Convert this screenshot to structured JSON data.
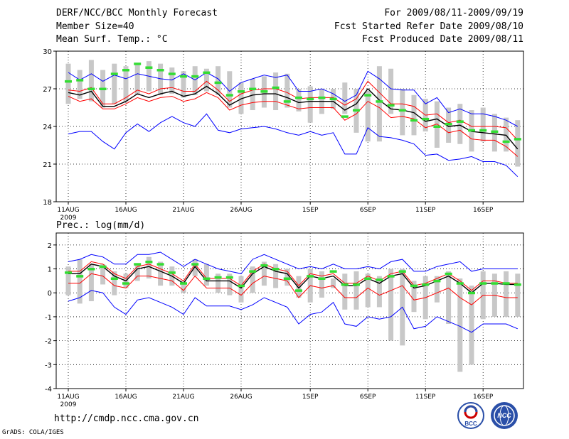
{
  "header": {
    "title": "DERF/NCC/BCC Monthly Forecast",
    "member_size": "Member Size=40",
    "variable": "Mean Surf. Temp.: °C",
    "period": "For 2009/08/11-2009/09/19",
    "started": "Fcst Started Refer Date 2009/08/10",
    "produced": "Fcst Produced Date 2009/08/11"
  },
  "footer": {
    "url": "http://cmdp.ncc.cma.gov.cn",
    "grads": "GrADS: COLA/IGES",
    "logo_left": "BCC",
    "logo_right": "NCC"
  },
  "colors": {
    "blue": "#0000ff",
    "red": "#ff0000",
    "black": "#000000",
    "green": "#33dd33",
    "box": "#c8c8c8"
  },
  "chart_data": [
    {
      "type": "line",
      "title": "Mean Surf. Temp.: °C",
      "ylim": [
        18,
        30
      ],
      "yticks": [
        18,
        21,
        24,
        27,
        30
      ],
      "xticks": [
        "11AUG",
        "16AUG",
        "21AUG",
        "26AUG",
        "1SEP",
        "6SEP",
        "11SEP",
        "16SEP"
      ],
      "xticks_day_index": [
        0,
        5,
        10,
        15,
        21,
        26,
        31,
        36
      ],
      "year_label": "2009",
      "box_low": [
        25.8,
        26.2,
        26.0,
        25.5,
        25.8,
        26.0,
        26.5,
        26.8,
        26.5,
        26.6,
        26.3,
        26.5,
        26.8,
        26.5,
        25.5,
        25.0,
        25.3,
        25.5,
        25.3,
        25.5,
        25.2,
        24.3,
        25.0,
        25.4,
        25.0,
        23.5,
        22.8,
        22.8,
        25.0,
        23.3,
        23.3,
        23.6,
        22.3,
        22.7,
        22.6,
        22.0,
        22.8,
        22.0,
        22.0,
        20.8
      ],
      "box_high": [
        29.0,
        28.5,
        29.3,
        28.5,
        29.0,
        28.8,
        29.0,
        29.2,
        29.0,
        28.7,
        28.4,
        28.8,
        28.6,
        28.8,
        28.4,
        27.5,
        27.8,
        28.0,
        28.3,
        28.2,
        27.0,
        27.2,
        27.0,
        27.0,
        27.5,
        27.0,
        26.8,
        28.8,
        28.6,
        27.0,
        26.5,
        26.2,
        26.0,
        25.5,
        25.8,
        25.3,
        25.5,
        25.0,
        24.7,
        24.5
      ],
      "green": [
        27.6,
        27.7,
        27.0,
        27.0,
        28.2,
        28.5,
        29.0,
        28.7,
        28.5,
        28.2,
        28.0,
        28.0,
        28.3,
        27.5,
        26.5,
        26.8,
        27.0,
        26.8,
        27.1,
        26.0,
        26.3,
        26.2,
        26.3,
        26.2,
        24.8,
        25.3,
        26.5,
        26.0,
        25.7,
        25.3,
        24.5,
        24.6,
        24.0,
        24.2,
        24.4,
        23.7,
        23.7,
        23.6,
        22.8,
        23.0
      ],
      "series": [
        {
          "name": "max",
          "color": "#0000ff",
          "values": [
            28.3,
            27.7,
            28.2,
            27.6,
            28.1,
            27.8,
            28.2,
            28.0,
            27.8,
            27.7,
            28.2,
            27.7,
            28.3,
            27.8,
            26.8,
            27.5,
            27.8,
            28.1,
            27.9,
            28.1,
            26.8,
            26.8,
            27.0,
            26.6,
            26.0,
            26.5,
            28.4,
            27.8,
            27.0,
            26.9,
            26.9,
            25.8,
            26.3,
            25.1,
            25.4,
            25.0,
            25.0,
            24.8,
            24.5,
            24.0
          ]
        },
        {
          "name": "upper",
          "color": "#ff0000",
          "values": [
            26.9,
            26.8,
            27.1,
            25.8,
            25.8,
            26.3,
            26.9,
            26.6,
            27.0,
            27.1,
            26.8,
            26.8,
            27.6,
            26.9,
            26.0,
            26.6,
            26.9,
            27.0,
            27.0,
            26.7,
            26.2,
            26.3,
            26.3,
            26.3,
            25.7,
            26.2,
            27.6,
            26.7,
            25.8,
            25.8,
            25.6,
            24.9,
            25.0,
            24.3,
            24.5,
            24.0,
            24.0,
            24.0,
            23.9,
            22.9
          ]
        },
        {
          "name": "mean",
          "color": "#000000",
          "values": [
            26.7,
            26.5,
            26.8,
            25.6,
            25.6,
            26.0,
            26.6,
            26.3,
            26.6,
            26.8,
            26.4,
            26.6,
            27.2,
            26.6,
            25.7,
            26.2,
            26.5,
            26.6,
            26.6,
            26.3,
            25.9,
            26.0,
            26.0,
            26.0,
            25.3,
            25.8,
            27.0,
            26.1,
            25.4,
            25.3,
            25.1,
            24.4,
            24.6,
            24.0,
            24.1,
            23.6,
            23.5,
            23.4,
            23.3,
            22.2
          ]
        },
        {
          "name": "lower",
          "color": "#ff0000",
          "values": [
            26.4,
            26.0,
            26.2,
            25.4,
            25.4,
            25.8,
            26.3,
            26.0,
            26.3,
            26.4,
            26.0,
            26.2,
            26.7,
            26.3,
            25.3,
            25.7,
            25.9,
            26.0,
            26.0,
            25.7,
            25.4,
            25.5,
            25.5,
            25.5,
            24.5,
            25.0,
            26.0,
            25.5,
            24.7,
            24.8,
            24.6,
            23.9,
            24.2,
            23.5,
            23.7,
            23.0,
            22.9,
            22.9,
            22.4,
            21.6
          ]
        },
        {
          "name": "min",
          "color": "#0000ff",
          "values": [
            23.4,
            23.6,
            23.6,
            22.8,
            22.2,
            23.5,
            24.2,
            23.6,
            24.3,
            24.8,
            24.3,
            24.0,
            25.0,
            23.7,
            23.5,
            23.8,
            23.9,
            24.0,
            23.8,
            23.5,
            23.3,
            23.6,
            23.3,
            23.5,
            21.8,
            21.8,
            23.9,
            23.2,
            23.1,
            22.9,
            22.6,
            21.7,
            21.8,
            21.3,
            21.4,
            21.6,
            21.2,
            21.2,
            20.9,
            20.0
          ]
        }
      ]
    },
    {
      "type": "line",
      "title": "Prec.: log(mm/d)",
      "ylim": [
        -4,
        2.5
      ],
      "yticks": [
        -4,
        -3,
        -2,
        -1,
        0,
        1,
        2
      ],
      "xticks": [
        "11AUG",
        "16AUG",
        "21AUG",
        "26AUG",
        "1SEP",
        "6SEP",
        "11SEP",
        "16SEP"
      ],
      "xticks_day_index": [
        0,
        5,
        10,
        15,
        21,
        26,
        31,
        36
      ],
      "year_label": "2009",
      "box_low": [
        -0.1,
        -0.45,
        -0.35,
        0.35,
        -0.1,
        0.2,
        0.5,
        0.6,
        0.3,
        0.3,
        0.0,
        0.7,
        0.3,
        0.0,
        -0.1,
        -0.4,
        0.0,
        0.3,
        0.2,
        0.3,
        -0.2,
        -0.4,
        -0.2,
        0.2,
        -0.7,
        -0.7,
        -0.6,
        -0.6,
        -2.0,
        -2.2,
        -0.8,
        -1.1,
        -0.4,
        -1.3,
        -3.3,
        -3.0,
        -1.1,
        -1.0,
        -1.0,
        -1.0
      ],
      "box_high": [
        1.1,
        1.4,
        1.2,
        1.2,
        0.9,
        0.8,
        1.2,
        1.5,
        1.3,
        1.1,
        0.5,
        1.4,
        1.2,
        0.8,
        0.8,
        0.7,
        1.1,
        1.3,
        1.2,
        1.0,
        0.7,
        1.0,
        0.9,
        0.6,
        0.8,
        0.9,
        0.8,
        0.7,
        1.0,
        1.0,
        0.5,
        0.7,
        0.7,
        0.9,
        0.6,
        0.3,
        0.9,
        0.8,
        0.9,
        0.8
      ],
      "green": [
        0.85,
        0.7,
        1.0,
        1.1,
        0.6,
        0.4,
        1.2,
        1.3,
        1.2,
        0.85,
        0.4,
        1.2,
        0.6,
        0.65,
        0.65,
        0.3,
        0.9,
        1.15,
        1.0,
        0.6,
        0.1,
        0.7,
        0.6,
        0.9,
        0.35,
        0.35,
        0.6,
        0.55,
        0.7,
        0.9,
        0.3,
        0.35,
        0.5,
        0.8,
        0.4,
        0.0,
        0.4,
        0.4,
        0.4,
        0.35
      ],
      "series": [
        {
          "name": "max",
          "color": "#0000ff",
          "values": [
            1.3,
            1.4,
            1.6,
            1.5,
            1.2,
            1.2,
            1.6,
            1.6,
            1.7,
            1.4,
            1.1,
            1.4,
            1.2,
            1.0,
            0.9,
            0.8,
            1.4,
            1.6,
            1.4,
            1.2,
            1.0,
            1.1,
            1.0,
            1.2,
            1.0,
            1.0,
            1.1,
            1.0,
            1.3,
            1.4,
            0.9,
            0.9,
            1.1,
            1.2,
            1.3,
            0.9,
            1.0,
            1.0,
            1.0,
            1.0
          ]
        },
        {
          "name": "upper",
          "color": "#ff0000",
          "values": [
            0.9,
            0.9,
            1.3,
            1.2,
            0.8,
            0.6,
            1.1,
            1.2,
            1.0,
            0.8,
            0.5,
            1.2,
            0.6,
            0.6,
            0.6,
            0.3,
            0.9,
            1.2,
            1.0,
            0.9,
            0.3,
            0.8,
            0.7,
            0.8,
            0.4,
            0.4,
            0.7,
            0.5,
            0.8,
            0.9,
            0.3,
            0.4,
            0.6,
            0.8,
            0.5,
            0.1,
            0.5,
            0.5,
            0.4,
            0.4
          ]
        },
        {
          "name": "mean",
          "color": "#000000",
          "values": [
            0.8,
            0.8,
            1.2,
            1.1,
            0.7,
            0.5,
            1.0,
            1.1,
            0.9,
            0.7,
            0.4,
            1.1,
            0.5,
            0.5,
            0.5,
            0.2,
            0.8,
            1.1,
            0.9,
            0.8,
            0.2,
            0.7,
            0.6,
            0.7,
            0.3,
            0.3,
            0.6,
            0.4,
            0.7,
            0.8,
            0.2,
            0.3,
            0.5,
            0.7,
            0.4,
            0.0,
            0.4,
            0.4,
            0.35,
            0.35
          ]
        },
        {
          "name": "lower",
          "color": "#ff0000",
          "values": [
            0.4,
            0.4,
            0.8,
            0.7,
            0.3,
            0.2,
            0.7,
            0.7,
            0.6,
            0.5,
            0.1,
            0.7,
            0.2,
            0.2,
            0.2,
            -0.1,
            0.4,
            0.7,
            0.6,
            0.5,
            -0.2,
            0.3,
            0.2,
            0.3,
            -0.2,
            -0.2,
            0.2,
            -0.1,
            0.1,
            0.3,
            -0.3,
            -0.2,
            0.0,
            0.2,
            -0.2,
            -0.5,
            -0.1,
            -0.1,
            -0.2,
            -0.2
          ]
        },
        {
          "name": "min",
          "color": "#0000ff",
          "values": [
            -0.35,
            -0.2,
            0.1,
            0.0,
            -0.6,
            -0.9,
            -0.3,
            -0.2,
            -0.4,
            -0.6,
            -0.9,
            -0.2,
            -0.55,
            -0.55,
            -0.55,
            -0.7,
            -0.5,
            -0.2,
            -0.4,
            -0.6,
            -1.3,
            -0.9,
            -0.8,
            -0.4,
            -1.3,
            -1.4,
            -1.0,
            -1.1,
            -1.0,
            -0.6,
            -1.5,
            -1.4,
            -1.0,
            -1.2,
            -1.4,
            -1.65,
            -1.3,
            -1.3,
            -1.3,
            -1.5
          ]
        }
      ]
    }
  ]
}
